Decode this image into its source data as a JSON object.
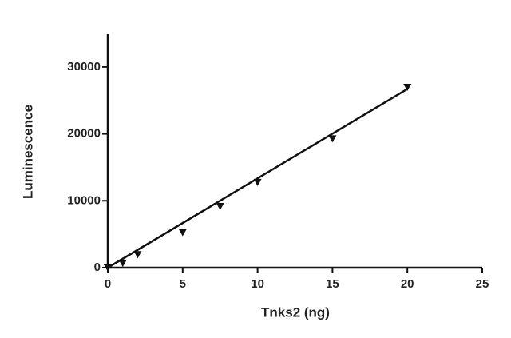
{
  "chart_data": {
    "type": "scatter",
    "xlabel": "Tnks2 (ng)",
    "ylabel": "Luminescence",
    "series": [
      {
        "color": "#111111",
        "marker": "triangle-down",
        "x": [
          0,
          1,
          2,
          5,
          7.5,
          10,
          15,
          20
        ],
        "values": [
          0,
          700,
          2000,
          5300,
          9200,
          12800,
          19300,
          27000
        ]
      },
      {
        "color": "#111111",
        "marker": "line",
        "x": [
          0,
          20
        ],
        "values": [
          0,
          26700
        ]
      }
    ],
    "xlim": [
      0,
      25
    ],
    "xticks": [
      0,
      5,
      10,
      15,
      20,
      25
    ],
    "ylim": [
      0,
      35000
    ],
    "yticks": [
      0,
      10000,
      20000,
      30000
    ],
    "grid": false
  }
}
